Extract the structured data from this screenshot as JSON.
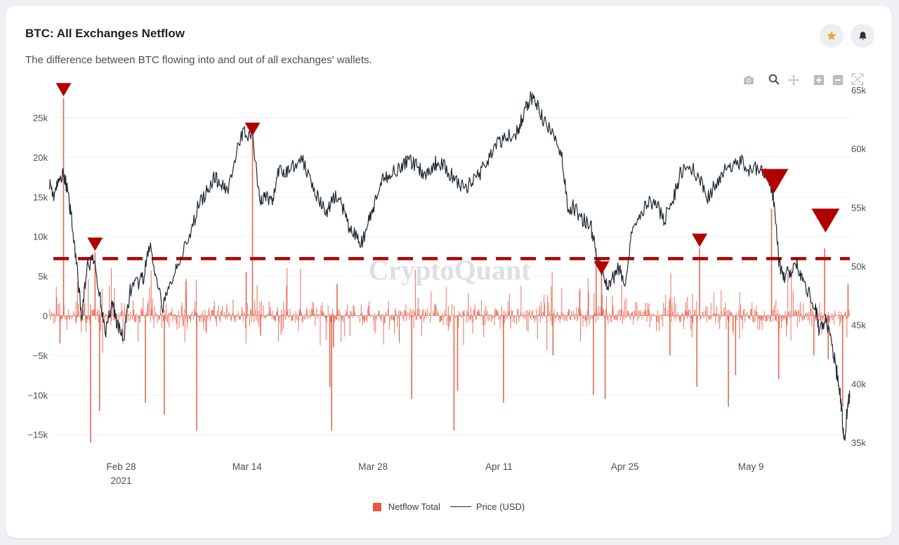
{
  "header": {
    "title": "BTC: All Exchanges Netflow",
    "subtitle": "The difference between BTC flowing into and out of all exchanges' wallets."
  },
  "actions": {
    "favorite_icon": "star-icon",
    "alert_icon": "bell-icon",
    "favorite_color": "#f5a623"
  },
  "toolbar": {
    "icons": [
      "camera-icon",
      "zoom-icon",
      "pan-icon",
      "zoom-in-icon",
      "zoom-out-icon",
      "reset-axes-icon"
    ]
  },
  "watermark": "CryptoQuant",
  "chart_data": {
    "type": "bar",
    "x_ticks": [
      {
        "label": "Feb 28",
        "sublabel": "2021",
        "day": 8
      },
      {
        "label": "Mar 14",
        "sublabel": "",
        "day": 22
      },
      {
        "label": "Mar 28",
        "sublabel": "",
        "day": 36
      },
      {
        "label": "Apr 11",
        "sublabel": "",
        "day": 50
      },
      {
        "label": "Apr 25",
        "sublabel": "",
        "day": 64
      },
      {
        "label": "May 9",
        "sublabel": "",
        "day": 78
      }
    ],
    "xlim_day": [
      0,
      89
    ],
    "y_left": {
      "ylim": [
        -16000,
        28500
      ],
      "ticks": [
        -15000,
        -10000,
        -5000,
        0,
        5000,
        10000,
        15000,
        20000,
        25000
      ],
      "tick_labels": [
        "−15k",
        "−10k",
        "−5k",
        "0",
        "5k",
        "10k",
        "15k",
        "20k",
        "25k"
      ]
    },
    "y_right": {
      "ylim": [
        35000,
        65000
      ],
      "ticks": [
        35000,
        40000,
        45000,
        50000,
        55000,
        60000,
        65000
      ],
      "tick_labels": [
        "35k",
        "40k",
        "45k",
        "50k",
        "55k",
        "60k",
        "65k"
      ]
    },
    "threshold_line": 7200,
    "series": [
      {
        "name": "Netflow Total",
        "color": "#e8563f",
        "spikes": [
          {
            "day": 1.6,
            "value": 27500
          },
          {
            "day": 1.2,
            "value": -3500
          },
          {
            "day": 4.6,
            "value": -16000
          },
          {
            "day": 5.1,
            "value": 8000
          },
          {
            "day": 5.6,
            "value": -12000
          },
          {
            "day": 10.7,
            "value": -11000
          },
          {
            "day": 12.8,
            "value": -12500
          },
          {
            "day": 16.4,
            "value": -14500
          },
          {
            "day": 21.9,
            "value": 5500
          },
          {
            "day": 22.6,
            "value": 22500
          },
          {
            "day": 23.5,
            "value": -2500
          },
          {
            "day": 31.6,
            "value": -4000
          },
          {
            "day": 31.2,
            "value": -9000
          },
          {
            "day": 31.4,
            "value": -14500
          },
          {
            "day": 32.0,
            "value": 4000
          },
          {
            "day": 40.3,
            "value": -10500
          },
          {
            "day": 45.0,
            "value": -14500
          },
          {
            "day": 45.4,
            "value": -9500
          },
          {
            "day": 50.5,
            "value": -11000
          },
          {
            "day": 56.0,
            "value": -5000
          },
          {
            "day": 60.5,
            "value": -10000
          },
          {
            "day": 60.8,
            "value": 8500
          },
          {
            "day": 61.8,
            "value": -10500
          },
          {
            "day": 61.4,
            "value": 5000
          },
          {
            "day": 72.0,
            "value": -9000
          },
          {
            "day": 72.3,
            "value": 8500
          },
          {
            "day": 75.5,
            "value": -11500
          },
          {
            "day": 76.3,
            "value": -7500
          },
          {
            "day": 80.3,
            "value": 13500
          },
          {
            "day": 81.1,
            "value": -8000
          },
          {
            "day": 86.2,
            "value": 8500
          },
          {
            "day": 86.6,
            "value": -5500
          },
          {
            "day": 88.2,
            "value": -11500
          },
          {
            "day": 88.8,
            "value": 4000
          },
          {
            "day": 85.0,
            "value": -5000
          },
          {
            "day": 69.0,
            "value": -5000
          }
        ]
      },
      {
        "name": "Price (USD)",
        "color": "#1f2933",
        "points": [
          [
            0,
            57200
          ],
          [
            0.5,
            56000
          ],
          [
            1,
            57000
          ],
          [
            1.6,
            58000
          ],
          [
            2,
            56500
          ],
          [
            2.6,
            53500
          ],
          [
            3.2,
            49000
          ],
          [
            3.6,
            45500
          ],
          [
            4.2,
            50000
          ],
          [
            5.0,
            50500
          ],
          [
            5.6,
            47500
          ],
          [
            6.3,
            44500
          ],
          [
            7.0,
            47000
          ],
          [
            7.6,
            45000
          ],
          [
            8.3,
            43800
          ],
          [
            9.0,
            48000
          ],
          [
            9.8,
            48500
          ],
          [
            10.5,
            49000
          ],
          [
            11.2,
            52000
          ],
          [
            11.8,
            49000
          ],
          [
            12.6,
            46500
          ],
          [
            13.3,
            48000
          ],
          [
            14.3,
            50500
          ],
          [
            15.5,
            52000
          ],
          [
            16.5,
            55000
          ],
          [
            17.6,
            56500
          ],
          [
            18.3,
            57500
          ],
          [
            19.1,
            57000
          ],
          [
            19.8,
            56500
          ],
          [
            20.8,
            59500
          ],
          [
            21.6,
            61500
          ],
          [
            22.6,
            61000
          ],
          [
            23.4,
            55500
          ],
          [
            24.0,
            56000
          ],
          [
            24.8,
            55500
          ],
          [
            25.5,
            58000
          ],
          [
            26.3,
            58000
          ],
          [
            27.0,
            58500
          ],
          [
            28.0,
            59200
          ],
          [
            29.1,
            57500
          ],
          [
            30.0,
            55500
          ],
          [
            30.9,
            54500
          ],
          [
            31.6,
            56000
          ],
          [
            32.4,
            55500
          ],
          [
            33.2,
            53500
          ],
          [
            34.1,
            52500
          ],
          [
            34.8,
            52000
          ],
          [
            35.6,
            54000
          ],
          [
            36.3,
            55500
          ],
          [
            37.2,
            57500
          ],
          [
            38.1,
            58000
          ],
          [
            39.1,
            58500
          ],
          [
            40.0,
            59000
          ],
          [
            41.0,
            58500
          ],
          [
            41.8,
            57700
          ],
          [
            42.6,
            58500
          ],
          [
            43.3,
            59000
          ],
          [
            44.4,
            58000
          ],
          [
            45.5,
            57000
          ],
          [
            46.3,
            56500
          ],
          [
            47.1,
            57500
          ],
          [
            48.0,
            58000
          ],
          [
            49.0,
            59500
          ],
          [
            50.0,
            60500
          ],
          [
            51.0,
            61000
          ],
          [
            52.1,
            61500
          ],
          [
            52.8,
            63000
          ],
          [
            53.5,
            64500
          ],
          [
            54.3,
            63500
          ],
          [
            55.2,
            62000
          ],
          [
            56.1,
            61000
          ],
          [
            57.0,
            59500
          ],
          [
            57.6,
            55000
          ],
          [
            58.3,
            55000
          ],
          [
            59.3,
            54000
          ],
          [
            60.2,
            53500
          ],
          [
            60.8,
            51000
          ],
          [
            61.4,
            49500
          ],
          [
            62.0,
            48500
          ],
          [
            62.8,
            49000
          ],
          [
            63.4,
            50000
          ],
          [
            64.0,
            48000
          ],
          [
            64.7,
            53000
          ],
          [
            65.6,
            54500
          ],
          [
            66.6,
            55500
          ],
          [
            67.6,
            55000
          ],
          [
            68.4,
            54000
          ],
          [
            69.5,
            56000
          ],
          [
            70.2,
            58000
          ],
          [
            71.3,
            58500
          ],
          [
            72.3,
            57500
          ],
          [
            73.1,
            55500
          ],
          [
            74.0,
            57000
          ],
          [
            75.0,
            58000
          ],
          [
            76.0,
            58500
          ],
          [
            77.0,
            59000
          ],
          [
            78.0,
            58000
          ],
          [
            79.0,
            58500
          ],
          [
            80.0,
            57500
          ],
          [
            80.6,
            55500
          ],
          [
            81.1,
            50500
          ],
          [
            81.6,
            49000
          ],
          [
            82.3,
            49500
          ],
          [
            83.0,
            50500
          ],
          [
            83.6,
            49000
          ],
          [
            84.3,
            48000
          ],
          [
            85.2,
            46500
          ],
          [
            85.6,
            44500
          ],
          [
            86.3,
            45500
          ],
          [
            86.9,
            44000
          ],
          [
            87.4,
            41500
          ],
          [
            87.8,
            40000
          ],
          [
            88.1,
            37500
          ],
          [
            88.4,
            35200
          ],
          [
            88.8,
            38500
          ],
          [
            89.0,
            39000
          ]
        ]
      }
    ],
    "markers": [
      {
        "day": 1.6,
        "size": "small"
      },
      {
        "day": 5.1,
        "size": "small"
      },
      {
        "day": 22.6,
        "size": "small"
      },
      {
        "day": 61.4,
        "size": "small"
      },
      {
        "day": 72.3,
        "size": "small"
      },
      {
        "day": 80.6,
        "size": "large"
      },
      {
        "day": 86.3,
        "size": "large"
      }
    ],
    "legend_position": "bottom-center",
    "grid": true
  },
  "legend": {
    "netflow": "Netflow Total",
    "price": "Price (USD)"
  }
}
